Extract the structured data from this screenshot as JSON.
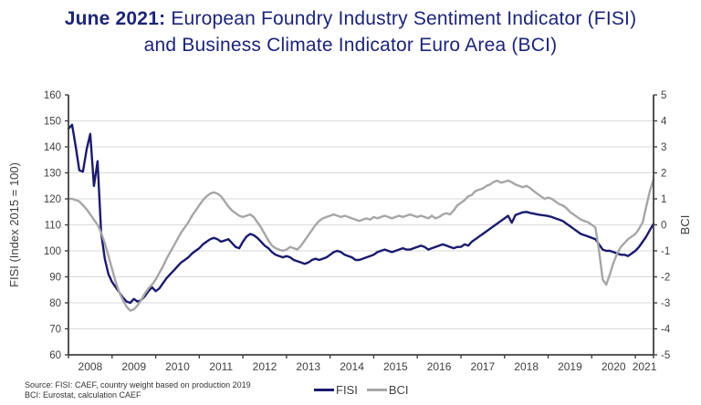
{
  "title": {
    "prefix": "June 2021:",
    "line1": "European Foundry Industry Sentiment Indicator (FISI)",
    "line2": "and Business Climate Indicator Euro Area (BCI)"
  },
  "source": {
    "line1": "Source: FISI: CAEF, country weight based on production 2019",
    "line2": "BCI: Eurostat, calculation CAEF"
  },
  "legend": [
    {
      "label": "FISI",
      "color": "#1a1a6e"
    },
    {
      "label": "BCI",
      "color": "#a6a6a6"
    }
  ],
  "colors": {
    "title_navy": "#1c2478",
    "fisi_line": "#1a1a6e",
    "bci_line": "#a6a6a6",
    "axis": "#404040",
    "gridline": "#d9d9d9",
    "tick_text": "#404040"
  },
  "chart_data": {
    "type": "line",
    "title": "June 2021: European Foundry Industry Sentiment Indicator (FISI) and Business Climate Indicator Euro Area (BCI)",
    "x": "monthly, Jan 2008 - Jun 2021",
    "x_start_year": 2008,
    "x_tick_labels": [
      "2008",
      "2009",
      "2010",
      "2011",
      "2012",
      "2013",
      "2014",
      "2015",
      "2016",
      "2017",
      "2018",
      "2019",
      "2020",
      "2021"
    ],
    "grid": true,
    "legend_position": "bottom",
    "left_axis": {
      "label": "FISI (Index 2015 = 100)",
      "min": 60,
      "max": 160,
      "step": 10,
      "tick_labels": [
        "160",
        "150",
        "140",
        "130",
        "120",
        "110",
        "100",
        "90",
        "80",
        "70",
        "60"
      ]
    },
    "right_axis": {
      "label": "BCI",
      "min": -5,
      "max": 5,
      "step": 1,
      "tick_labels": [
        "5",
        "4",
        "3",
        "2",
        "1",
        "0",
        "-1",
        "-2",
        "-3",
        "-4",
        "-5"
      ]
    },
    "series": [
      {
        "name": "FISI",
        "axis": "left",
        "color": "#1a1a6e",
        "values": [
          147,
          148.5,
          140,
          131,
          130.5,
          139,
          145,
          125,
          134.5,
          107,
          97,
          91,
          88,
          86,
          84,
          82,
          80.5,
          80,
          81.5,
          80.5,
          81,
          82.5,
          84.5,
          86,
          84.5,
          85.5,
          87.5,
          89.5,
          91,
          92.5,
          94,
          95.5,
          96.5,
          97.5,
          99,
          100,
          101,
          102.5,
          103.5,
          104.5,
          105,
          104.5,
          103.5,
          104,
          104.5,
          103,
          101.5,
          101,
          103.5,
          105.5,
          106.5,
          106,
          105,
          103.5,
          102,
          101,
          99.5,
          98.5,
          98,
          97.5,
          98,
          97.5,
          96.5,
          96,
          95.5,
          95,
          95.5,
          96.5,
          97,
          96.5,
          97,
          97.5,
          98.5,
          99.5,
          100,
          99.5,
          98.5,
          98,
          97.5,
          96.5,
          96.5,
          97,
          97.5,
          98,
          98.5,
          99.5,
          100,
          100.5,
          100,
          99.5,
          100,
          100.5,
          101,
          100.5,
          100.5,
          101,
          101.5,
          102,
          101.5,
          100.5,
          101,
          101.5,
          102,
          102.5,
          102,
          101.5,
          101,
          101.5,
          101.5,
          102.5,
          102,
          103.5,
          104.5,
          105.5,
          106.5,
          107.5,
          108.5,
          109.5,
          110.5,
          111.5,
          112.5,
          113.5,
          110.8,
          113.8,
          114.3,
          114.8,
          115,
          114.6,
          114.3,
          114,
          113.8,
          113.6,
          113.4,
          113,
          112.5,
          112,
          111.5,
          110.5,
          109.5,
          108.5,
          107.5,
          106.5,
          106,
          105.5,
          105,
          104.5,
          102.5,
          100.5,
          100,
          100,
          99.5,
          99,
          98.5,
          98.5,
          98,
          99,
          100,
          101.5,
          103.5,
          105.5,
          108,
          110.4
        ]
      },
      {
        "name": "BCI",
        "axis": "right",
        "color": "#a6a6a6",
        "values": [
          1.0,
          1.0,
          0.95,
          0.9,
          0.75,
          0.6,
          0.4,
          0.2,
          0.0,
          -0.3,
          -0.7,
          -1.2,
          -1.7,
          -2.2,
          -2.6,
          -2.9,
          -3.15,
          -3.3,
          -3.25,
          -3.1,
          -2.9,
          -2.65,
          -2.45,
          -2.3,
          -2.1,
          -1.85,
          -1.6,
          -1.3,
          -1.05,
          -0.8,
          -0.55,
          -0.3,
          -0.1,
          0.1,
          0.35,
          0.55,
          0.75,
          0.95,
          1.1,
          1.2,
          1.25,
          1.2,
          1.1,
          0.9,
          0.7,
          0.55,
          0.45,
          0.35,
          0.3,
          0.35,
          0.4,
          0.3,
          0.1,
          -0.1,
          -0.35,
          -0.6,
          -0.8,
          -0.9,
          -0.95,
          -1.0,
          -0.95,
          -0.85,
          -0.9,
          -0.95,
          -0.8,
          -0.6,
          -0.4,
          -0.2,
          0.0,
          0.15,
          0.25,
          0.3,
          0.35,
          0.4,
          0.35,
          0.3,
          0.35,
          0.3,
          0.25,
          0.2,
          0.15,
          0.2,
          0.25,
          0.2,
          0.3,
          0.25,
          0.3,
          0.35,
          0.3,
          0.25,
          0.3,
          0.35,
          0.3,
          0.35,
          0.4,
          0.35,
          0.3,
          0.35,
          0.3,
          0.25,
          0.35,
          0.25,
          0.3,
          0.4,
          0.45,
          0.4,
          0.55,
          0.75,
          0.85,
          0.95,
          1.1,
          1.15,
          1.3,
          1.35,
          1.4,
          1.5,
          1.55,
          1.65,
          1.7,
          1.62,
          1.66,
          1.7,
          1.64,
          1.55,
          1.5,
          1.45,
          1.5,
          1.42,
          1.3,
          1.2,
          1.1,
          1.0,
          1.05,
          1.0,
          0.9,
          0.8,
          0.75,
          0.65,
          0.5,
          0.4,
          0.3,
          0.2,
          0.15,
          0.1,
          0.0,
          -0.1,
          -1.0,
          -2.1,
          -2.3,
          -1.9,
          -1.45,
          -1.1,
          -0.85,
          -0.7,
          -0.55,
          -0.45,
          -0.35,
          -0.15,
          0.1,
          0.7,
          1.3,
          1.75
        ]
      }
    ]
  }
}
